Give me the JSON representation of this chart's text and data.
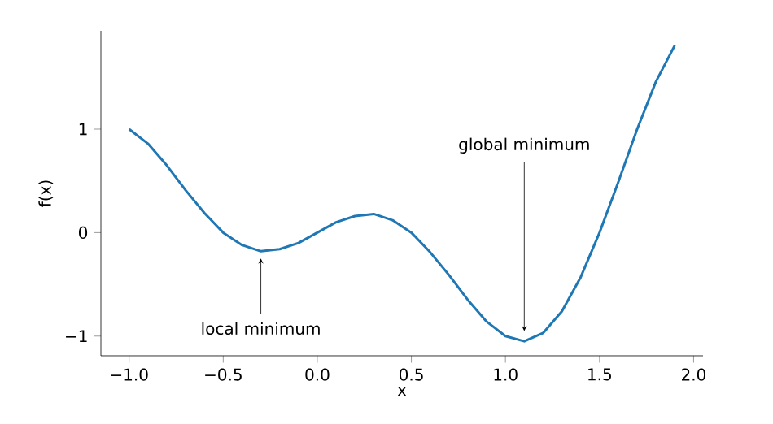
{
  "chart_data": {
    "type": "line",
    "xlabel": "x",
    "ylabel": "f(x)",
    "x": [
      -1.0,
      -0.9,
      -0.8,
      -0.7,
      -0.6,
      -0.5,
      -0.4,
      -0.3,
      -0.2,
      -0.1,
      0.0,
      0.1,
      0.2,
      0.3,
      0.4,
      0.5,
      0.6,
      0.7,
      0.8,
      0.9,
      1.0,
      1.1,
      1.2,
      1.3,
      1.4,
      1.5,
      1.6,
      1.7,
      1.8,
      1.9
    ],
    "series": [
      {
        "color": "#1f77b4",
        "values": [
          1.0,
          0.86,
          0.65,
          0.41,
          0.19,
          0.0,
          -0.12,
          -0.18,
          -0.16,
          -0.1,
          0.0,
          0.1,
          0.16,
          0.18,
          0.12,
          0.0,
          -0.19,
          -0.41,
          -0.65,
          -0.86,
          -1.0,
          -1.05,
          -0.97,
          -0.76,
          -0.43,
          0.0,
          0.49,
          1.0,
          1.46,
          1.81
        ]
      }
    ],
    "xlim": [
      -1.15,
      2.05
    ],
    "ylim": [
      -1.19,
      1.95
    ],
    "xticks": [
      {
        "value": -1.0,
        "label": "−1.0"
      },
      {
        "value": -0.5,
        "label": "−0.5"
      },
      {
        "value": 0.0,
        "label": "0.0"
      },
      {
        "value": 0.5,
        "label": "0.5"
      },
      {
        "value": 1.0,
        "label": "1.0"
      },
      {
        "value": 1.5,
        "label": "1.5"
      },
      {
        "value": 2.0,
        "label": "2.0"
      }
    ],
    "yticks": [
      {
        "value": -1,
        "label": "−1"
      },
      0,
      1
    ],
    "annotations": [
      {
        "text": "local minimum",
        "x": -0.3,
        "y": -0.25
      },
      {
        "text": "global minimum",
        "x": 1.1,
        "y": -0.95
      }
    ],
    "marker": "none",
    "line_style": "solid"
  }
}
